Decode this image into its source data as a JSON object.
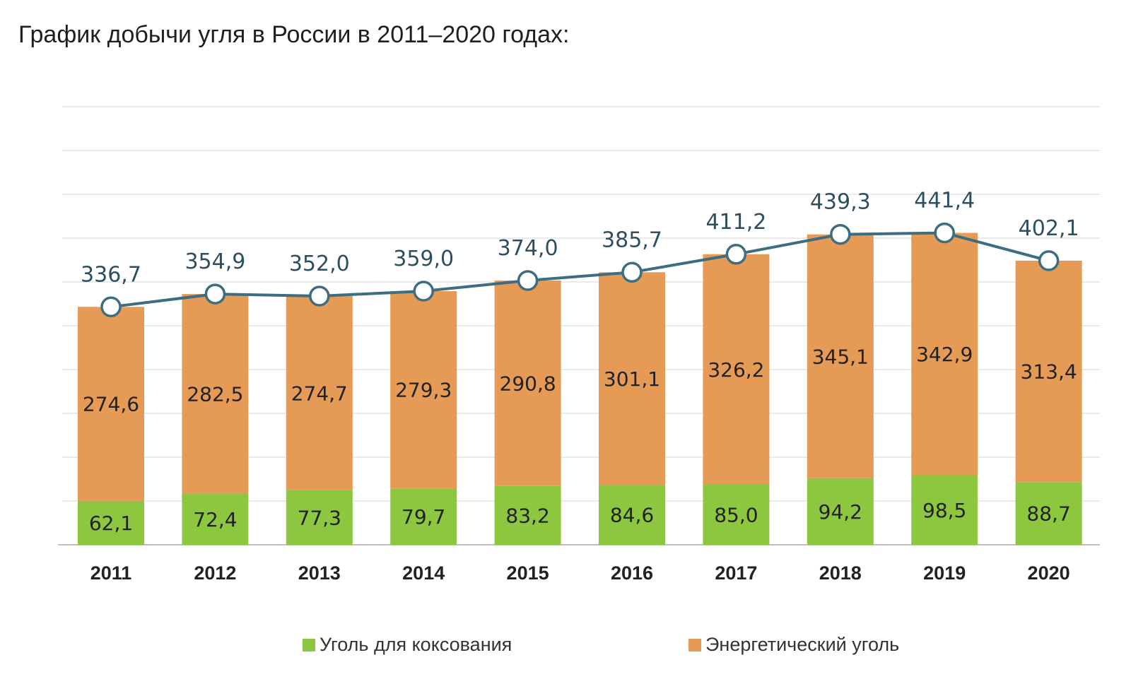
{
  "title": "График добычи угля в России в 2011–2020 годах:",
  "colors": {
    "coking": "#8dc63f",
    "energy": "#e59a55",
    "line": "#3d6d80",
    "grid": "#e3e3e3",
    "axis": "#bfbfbf"
  },
  "chart_data": {
    "type": "bar",
    "stacked": true,
    "categories": [
      "2011",
      "2012",
      "2013",
      "2014",
      "2015",
      "2016",
      "2017",
      "2018",
      "2019",
      "2020"
    ],
    "series": [
      {
        "name": "Уголь для коксования",
        "color": "#8dc63f",
        "values": [
          62.1,
          72.4,
          77.3,
          79.7,
          83.2,
          84.6,
          85.0,
          94.2,
          98.5,
          88.7
        ]
      },
      {
        "name": "Энергетический уголь",
        "color": "#e59a55",
        "values": [
          274.6,
          282.5,
          274.7,
          279.3,
          290.8,
          301.1,
          326.2,
          345.1,
          342.9,
          313.4
        ]
      }
    ],
    "value_labels": {
      "coking": [
        "62,1",
        "72,4",
        "77,3",
        "79,7",
        "83,2",
        "84,6",
        "85,0",
        "94,2",
        "98,5",
        "88,7"
      ],
      "energy": [
        "274,6",
        "282,5",
        "274,7",
        "279,3",
        "290,8",
        "301,1",
        "326,2",
        "345,1",
        "342,9",
        "313,4"
      ]
    },
    "totals": {
      "type": "line",
      "values": [
        336.7,
        354.9,
        352.0,
        359.0,
        374.0,
        385.7,
        411.2,
        439.3,
        441.4,
        402.1
      ],
      "labels": [
        "336,7",
        "354,9",
        "352,0",
        "359,0",
        "374,0",
        "385,7",
        "411,2",
        "439,3",
        "441,4",
        "402,1"
      ]
    },
    "ylim": [
      0,
      500
    ],
    "grid": true,
    "legend": {
      "position": "bottom",
      "items": [
        "Уголь для коксования",
        "Энергетический уголь"
      ]
    }
  }
}
